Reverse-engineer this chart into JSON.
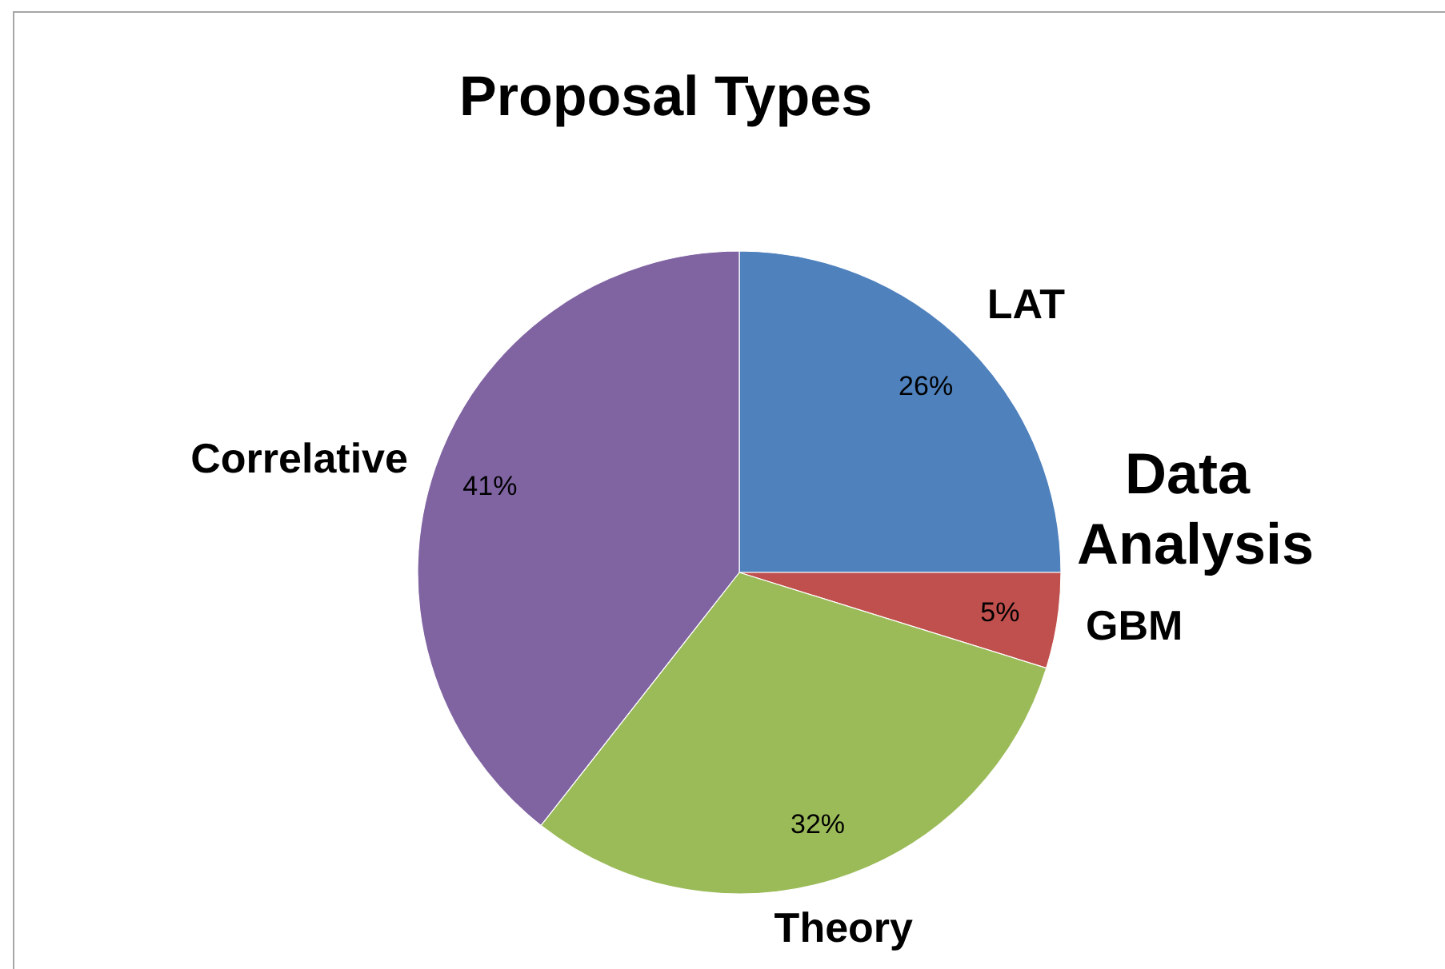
{
  "chart_data": {
    "type": "pie",
    "title": "Proposal Types",
    "categories": [
      "LAT",
      "GBM",
      "Theory",
      "Correlative"
    ],
    "values": [
      26,
      5,
      32,
      41
    ],
    "colors": [
      "#4f81bd",
      "#c0504d",
      "#9bbb59",
      "#8064a2"
    ],
    "value_labels": [
      "26%",
      "5%",
      "32%",
      "41%"
    ],
    "annotations": [
      "Data Analysis"
    ],
    "legend": false
  }
}
